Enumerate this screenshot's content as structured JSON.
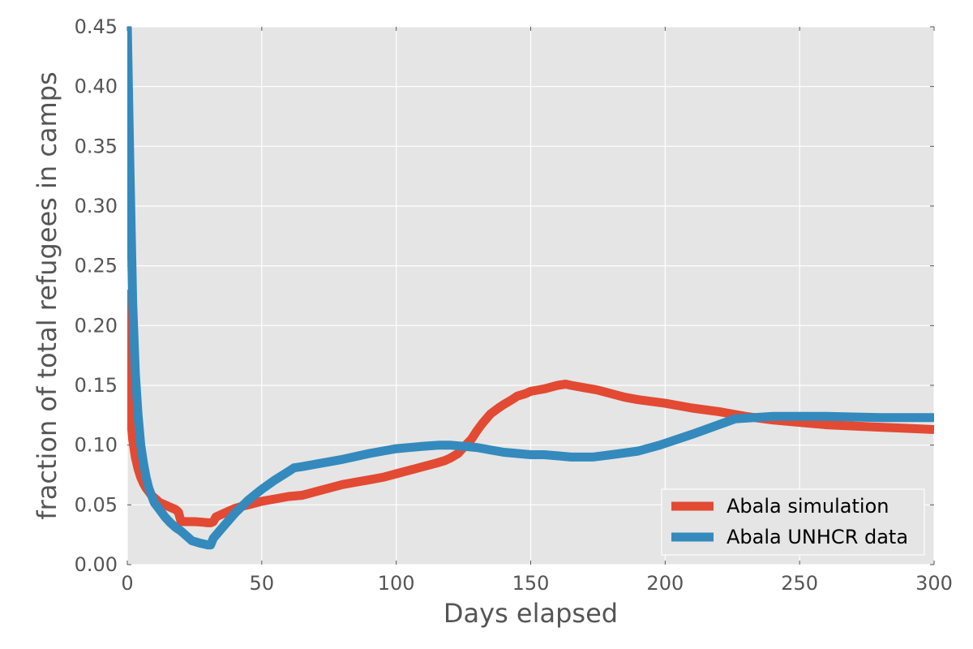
{
  "chart_data": {
    "type": "line",
    "title": "",
    "xlabel": "Days elapsed",
    "ylabel": "fraction of total refugees in camps",
    "xlim": [
      0,
      300
    ],
    "ylim": [
      0,
      0.45
    ],
    "xticks": [
      0,
      50,
      100,
      150,
      200,
      250,
      300
    ],
    "xtick_labels": [
      "0",
      "50",
      "100",
      "150",
      "200",
      "250",
      "300"
    ],
    "yticks": [
      0,
      0.05,
      0.1,
      0.15,
      0.2,
      0.25,
      0.3,
      0.35,
      0.4,
      0.45
    ],
    "ytick_labels": [
      "0.00",
      "0.05",
      "0.10",
      "0.15",
      "0.20",
      "0.25",
      "0.30",
      "0.35",
      "0.40",
      "0.45"
    ],
    "grid": true,
    "legend": "lower-right",
    "plot_background": "#e5e5e5",
    "series": [
      {
        "name": "Abala simulation",
        "color": "#e24a33",
        "x": [
          0,
          1,
          2,
          3,
          4,
          5,
          6,
          7,
          8,
          9,
          10,
          11,
          12,
          14,
          16,
          18,
          19,
          20,
          22,
          25,
          28,
          30,
          31,
          32,
          33,
          35,
          38,
          40,
          43,
          45,
          50,
          55,
          60,
          65,
          70,
          75,
          80,
          85,
          90,
          95,
          100,
          105,
          110,
          115,
          118,
          120,
          123,
          125,
          128,
          130,
          132,
          135,
          138,
          140,
          143,
          145,
          148,
          150,
          155,
          160,
          163,
          165,
          170,
          175,
          180,
          185,
          190,
          200,
          210,
          220,
          230,
          240,
          250,
          260,
          270,
          280,
          290,
          300
        ],
        "y": [
          0.23,
          0.13,
          0.105,
          0.09,
          0.08,
          0.073,
          0.068,
          0.064,
          0.061,
          0.058,
          0.056,
          0.054,
          0.052,
          0.05,
          0.048,
          0.046,
          0.044,
          0.036,
          0.036,
          0.036,
          0.0355,
          0.035,
          0.035,
          0.036,
          0.04,
          0.042,
          0.045,
          0.047,
          0.049,
          0.05,
          0.053,
          0.055,
          0.057,
          0.058,
          0.061,
          0.064,
          0.067,
          0.069,
          0.071,
          0.073,
          0.076,
          0.079,
          0.082,
          0.085,
          0.087,
          0.089,
          0.093,
          0.098,
          0.105,
          0.112,
          0.118,
          0.126,
          0.131,
          0.134,
          0.138,
          0.141,
          0.143,
          0.145,
          0.147,
          0.15,
          0.151,
          0.15,
          0.148,
          0.146,
          0.143,
          0.14,
          0.138,
          0.135,
          0.131,
          0.128,
          0.124,
          0.121,
          0.119,
          0.117,
          0.116,
          0.115,
          0.114,
          0.113
        ]
      },
      {
        "name": "Abala UNHCR data",
        "color": "#348abd",
        "x": [
          0,
          1,
          2,
          3,
          4,
          5,
          6,
          7,
          8,
          9,
          10,
          12,
          14,
          16,
          18,
          20,
          22,
          24,
          27,
          30,
          31,
          32,
          35,
          40,
          45,
          50,
          55,
          60,
          62,
          65,
          70,
          80,
          90,
          95,
          100,
          110,
          116,
          120,
          130,
          135,
          140,
          145,
          150,
          155,
          160,
          165,
          173,
          180,
          190,
          198,
          210,
          226,
          240,
          260,
          280,
          300
        ],
        "y": [
          0.45,
          0.33,
          0.22,
          0.16,
          0.125,
          0.1,
          0.085,
          0.073,
          0.064,
          0.058,
          0.052,
          0.046,
          0.04,
          0.035,
          0.031,
          0.028,
          0.024,
          0.02,
          0.018,
          0.0165,
          0.0165,
          0.022,
          0.03,
          0.043,
          0.054,
          0.063,
          0.071,
          0.078,
          0.081,
          0.082,
          0.084,
          0.088,
          0.093,
          0.095,
          0.097,
          0.099,
          0.1,
          0.1,
          0.098,
          0.096,
          0.094,
          0.093,
          0.092,
          0.092,
          0.091,
          0.09,
          0.09,
          0.092,
          0.095,
          0.1,
          0.109,
          0.122,
          0.124,
          0.124,
          0.123,
          0.123
        ]
      }
    ]
  }
}
